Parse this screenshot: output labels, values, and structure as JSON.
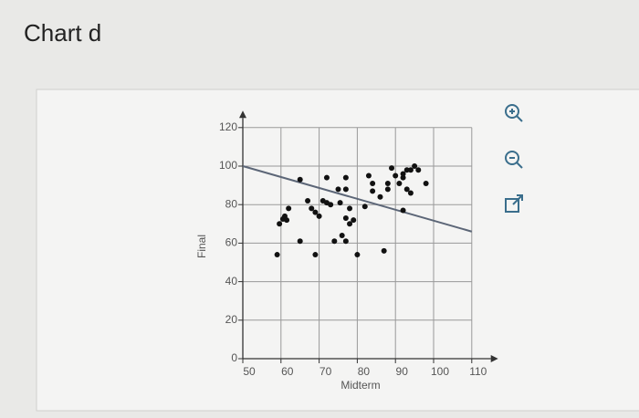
{
  "title": "Chart d",
  "chart_data": {
    "type": "scatter",
    "x_label": "Midterm",
    "y_label": "Final",
    "x": [
      59,
      59.6,
      60.5,
      61,
      61.5,
      62,
      65,
      65,
      69,
      67,
      68,
      69,
      70,
      71,
      72,
      73,
      72,
      74,
      75,
      75.5,
      76,
      77,
      77,
      77,
      77,
      78,
      78,
      79,
      80,
      82,
      83,
      84,
      84,
      86,
      87,
      88,
      88,
      89,
      90,
      91,
      92,
      92,
      92,
      93,
      93,
      94,
      95,
      94,
      96,
      98
    ],
    "values": [
      54,
      70,
      72.5,
      74,
      72,
      78,
      93,
      61,
      54,
      82,
      78,
      76,
      74,
      82,
      81,
      80,
      94,
      61,
      88,
      81,
      64,
      61,
      73,
      94,
      88,
      78,
      70,
      72,
      54,
      79,
      95,
      91,
      87,
      84,
      56,
      91,
      88,
      99,
      95,
      91,
      96,
      94,
      77,
      88,
      98,
      98,
      100,
      86,
      98,
      91
    ],
    "color": "#111111",
    "fit_line": {
      "x": [
        50,
        110
      ],
      "values": [
        100,
        66
      ],
      "color": "#5c6677"
    },
    "xlim": [
      50,
      115
    ],
    "ylim": [
      0,
      125
    ],
    "xticks": [
      50,
      60,
      70,
      80,
      90,
      100,
      110
    ],
    "yticks": [
      0,
      20,
      40,
      60,
      80,
      100,
      120
    ],
    "grid": true
  }
}
